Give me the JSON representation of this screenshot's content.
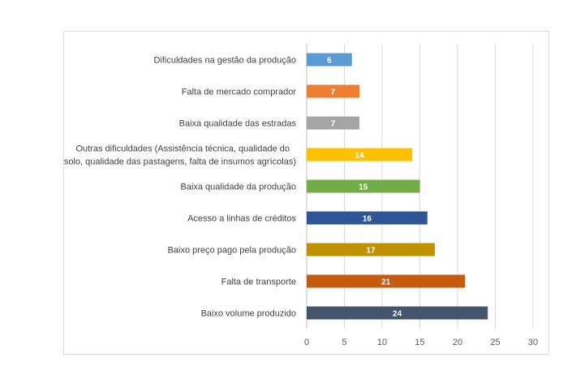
{
  "chart_data": {
    "type": "bar",
    "orientation": "horizontal",
    "title": "",
    "xlabel": "",
    "ylabel": "",
    "xlim": [
      0,
      30
    ],
    "xticks": [
      0,
      5,
      10,
      15,
      20,
      25,
      30
    ],
    "grid": true,
    "categories": [
      "Dificuldades na gestão da produção",
      "Falta de mercado comprador",
      "Baixa qualidade das estradas",
      "Outras dificuldades (Assistência técnica, qualidade do|solo, qualidade das pastagens, falta de insumos agrícolas)",
      "Baixa qualidade da produção",
      "Acesso a linhas de créditos",
      "Baixo preço pago pela produção",
      "Falta de transporte",
      "Baixo volume produzido"
    ],
    "values": [
      6,
      7,
      7,
      14,
      15,
      16,
      17,
      21,
      24
    ],
    "colors": [
      "#5B9BD5",
      "#ED7D31",
      "#A5A5A5",
      "#FFC000",
      "#70AD47",
      "#2F5597",
      "#BF9000",
      "#C55A11",
      "#44546A"
    ]
  }
}
